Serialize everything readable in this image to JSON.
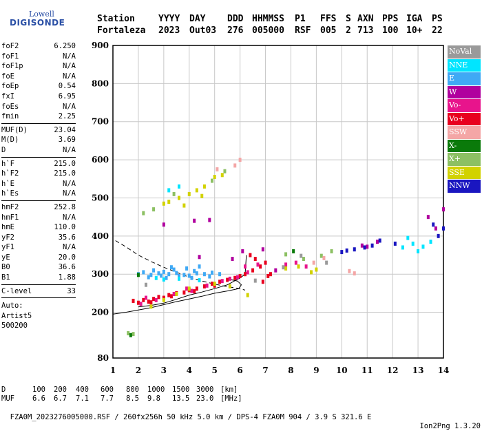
{
  "logo": {
    "top": "Lowell",
    "main": "DIGISONDE"
  },
  "header": {
    "labels": [
      "Station",
      "YYYY",
      "DAY",
      "DDD",
      "HHMMSS",
      "P1",
      "FFS",
      "S",
      "AXN",
      "PPS",
      "IGA",
      "PS"
    ],
    "values": [
      "Fortaleza",
      "2023",
      "Out03",
      "276",
      "005000",
      "RSF",
      "005",
      "2",
      "713",
      "100",
      "10+",
      "22"
    ]
  },
  "params_group1": [
    {
      "name": "foF2",
      "value": "6.250"
    },
    {
      "name": "foF1",
      "value": "N/A"
    },
    {
      "name": "foF1p",
      "value": "N/A"
    },
    {
      "name": "foE",
      "value": "N/A"
    },
    {
      "name": "foEp",
      "value": "0.54"
    },
    {
      "name": "fxI",
      "value": "6.95"
    },
    {
      "name": "foEs",
      "value": "N/A"
    },
    {
      "name": "fmin",
      "value": "2.25"
    }
  ],
  "params_group2": [
    {
      "name": "MUF(D)",
      "value": "23.04"
    },
    {
      "name": "M(D)",
      "value": "3.69"
    },
    {
      "name": "D",
      "value": "N/A"
    }
  ],
  "params_group3": [
    {
      "name": "h`F",
      "value": "215.0"
    },
    {
      "name": "h`F2",
      "value": "215.0"
    },
    {
      "name": "h`E",
      "value": "N/A"
    },
    {
      "name": "h`Es",
      "value": "N/A"
    }
  ],
  "params_group4": [
    {
      "name": "hmF2",
      "value": "252.8"
    },
    {
      "name": "hmF1",
      "value": "N/A"
    },
    {
      "name": "hmE",
      "value": "110.0"
    },
    {
      "name": "yF2",
      "value": "35.6"
    },
    {
      "name": "yF1",
      "value": "N/A"
    },
    {
      "name": "yE",
      "value": "20.0"
    },
    {
      "name": "B0",
      "value": "36.6"
    },
    {
      "name": "B1",
      "value": "1.88"
    }
  ],
  "params_group5": [
    {
      "name": "C-level",
      "value": "33"
    }
  ],
  "auto": {
    "line1": "Auto:",
    "line2": "Artist5",
    "line3": "500200"
  },
  "legend": [
    {
      "label": "NoVal",
      "color": "#9a9a9a"
    },
    {
      "label": "NNE",
      "color": "#00e5ff"
    },
    {
      "label": "E",
      "color": "#3fa9f5"
    },
    {
      "label": "W",
      "color": "#b0009e"
    },
    {
      "label": "Vo-",
      "color": "#e8148c"
    },
    {
      "label": "Vo+",
      "color": "#e8001e"
    },
    {
      "label": "SSW",
      "color": "#f4a6a6"
    },
    {
      "label": "X-",
      "color": "#0a7a0a"
    },
    {
      "label": "X+",
      "color": "#8cc063"
    },
    {
      "label": "SSE",
      "color": "#d2d200"
    },
    {
      "label": "NNW",
      "color": "#1a16c0"
    }
  ],
  "footer": {
    "d_label": "D",
    "d_values": [
      "100",
      "200",
      "400",
      "600",
      "800",
      "1000",
      "1500",
      "3000"
    ],
    "d_unit": "[km]",
    "muf_label": "MUF",
    "muf_values": [
      "6.6",
      "6.7",
      "7.1",
      "7.7",
      "8.5",
      "9.8",
      "13.5",
      "23.0"
    ],
    "muf_unit": "[MHz]",
    "info": "FZA0M_2023276005000.RSF / 260fx256h 50 kHz 5.0 km / DPS-4 FZA0M 904 / 3.9 S 321.6 E",
    "version": "Ion2Png 1.3.20"
  },
  "chart_data": {
    "type": "scatter",
    "xlim": [
      1,
      14
    ],
    "xticks": [
      1,
      2,
      3,
      4,
      5,
      6,
      7,
      8,
      9,
      10,
      11,
      12,
      13,
      14
    ],
    "ylim": [
      80,
      900
    ],
    "yticks": [
      80,
      200,
      300,
      400,
      500,
      600,
      700,
      800,
      900
    ],
    "grid": true,
    "xlabel": "",
    "ylabel": "",
    "series": [
      {
        "name": "E",
        "points": [
          [
            2.0,
            300
          ],
          [
            2.2,
            305
          ],
          [
            2.5,
            298
          ],
          [
            2.8,
            302
          ],
          [
            3.0,
            306
          ],
          [
            3.2,
            300
          ],
          [
            3.5,
            303
          ],
          [
            3.8,
            298
          ],
          [
            4.0,
            296
          ],
          [
            4.3,
            302
          ],
          [
            4.6,
            300
          ],
          [
            4.9,
            304
          ],
          [
            5.2,
            300
          ],
          [
            2.4,
            292
          ],
          [
            3.1,
            290
          ],
          [
            3.6,
            295
          ],
          [
            4.1,
            290
          ],
          [
            4.8,
            294
          ],
          [
            2.6,
            310
          ],
          [
            3.4,
            312
          ],
          [
            4.2,
            308
          ],
          [
            3.9,
            315
          ],
          [
            4.4,
            320
          ],
          [
            3.3,
            318
          ],
          [
            2.9,
            296
          ]
        ]
      },
      {
        "name": "NNE",
        "points": [
          [
            3.0,
            286
          ],
          [
            3.6,
            288
          ],
          [
            4.4,
            284
          ],
          [
            2.7,
            290
          ],
          [
            12.4,
            370
          ],
          [
            12.8,
            380
          ],
          [
            13.2,
            372
          ],
          [
            12.6,
            395
          ],
          [
            13.5,
            385
          ],
          [
            3.2,
            520
          ],
          [
            3.6,
            530
          ],
          [
            13.0,
            360
          ]
        ]
      },
      {
        "name": "Vo+",
        "points": [
          [
            1.8,
            230
          ],
          [
            2.0,
            225
          ],
          [
            2.2,
            232
          ],
          [
            2.4,
            228
          ],
          [
            2.6,
            235
          ],
          [
            2.8,
            240
          ],
          [
            3.0,
            238
          ],
          [
            3.2,
            245
          ],
          [
            3.5,
            250
          ],
          [
            3.8,
            252
          ],
          [
            4.0,
            258
          ],
          [
            4.3,
            262
          ],
          [
            4.6,
            268
          ],
          [
            4.9,
            275
          ],
          [
            5.2,
            280
          ],
          [
            5.5,
            285
          ],
          [
            5.8,
            290
          ],
          [
            6.0,
            295
          ],
          [
            6.2,
            300
          ],
          [
            6.5,
            310
          ],
          [
            6.8,
            320
          ],
          [
            7.0,
            330
          ],
          [
            7.2,
            300
          ],
          [
            6.4,
            350
          ],
          [
            6.6,
            340
          ],
          [
            5.0,
            270
          ],
          [
            4.2,
            255
          ],
          [
            3.3,
            242
          ],
          [
            2.5,
            226
          ],
          [
            6.9,
            280
          ],
          [
            7.1,
            295
          ]
        ]
      },
      {
        "name": "Vo-",
        "points": [
          [
            2.1,
            222
          ],
          [
            2.7,
            232
          ],
          [
            3.4,
            248
          ],
          [
            4.1,
            256
          ],
          [
            4.7,
            270
          ],
          [
            5.3,
            282
          ],
          [
            5.9,
            292
          ],
          [
            6.3,
            305
          ],
          [
            6.7,
            325
          ],
          [
            3.9,
            262
          ],
          [
            5.6,
            288
          ],
          [
            2.3,
            238
          ],
          [
            6.2,
            320
          ],
          [
            7.8,
            325
          ],
          [
            8.2,
            330
          ],
          [
            8.6,
            320
          ]
        ]
      },
      {
        "name": "W",
        "points": [
          [
            3.0,
            430
          ],
          [
            4.2,
            440
          ],
          [
            4.8,
            442
          ],
          [
            6.1,
            360
          ],
          [
            6.9,
            365
          ],
          [
            5.7,
            340
          ],
          [
            4.4,
            345
          ],
          [
            10.8,
            375
          ],
          [
            11.0,
            372
          ],
          [
            11.4,
            385
          ],
          [
            13.4,
            450
          ],
          [
            13.7,
            420
          ],
          [
            14.0,
            470
          ],
          [
            7.4,
            310
          ]
        ]
      },
      {
        "name": "NNW",
        "points": [
          [
            10.2,
            362
          ],
          [
            10.5,
            365
          ],
          [
            10.9,
            370
          ],
          [
            11.2,
            375
          ],
          [
            11.5,
            388
          ],
          [
            12.1,
            380
          ],
          [
            13.6,
            430
          ],
          [
            13.8,
            400
          ],
          [
            14.0,
            420
          ],
          [
            10.0,
            358
          ]
        ]
      },
      {
        "name": "SSE",
        "points": [
          [
            2.5,
            215
          ],
          [
            3.0,
            232
          ],
          [
            3.5,
            248
          ],
          [
            4.0,
            262
          ],
          [
            5.0,
            275
          ],
          [
            5.6,
            268
          ],
          [
            6.3,
            245
          ],
          [
            7.8,
            315
          ],
          [
            8.3,
            320
          ],
          [
            8.8,
            305
          ],
          [
            9.0,
            312
          ],
          [
            3.0,
            485
          ],
          [
            3.2,
            490
          ],
          [
            3.6,
            500
          ],
          [
            4.0,
            510
          ],
          [
            4.3,
            520
          ],
          [
            4.6,
            530
          ],
          [
            5.0,
            555
          ],
          [
            5.3,
            560
          ],
          [
            3.8,
            480
          ],
          [
            4.5,
            505
          ]
        ]
      },
      {
        "name": "X+",
        "points": [
          [
            1.6,
            145
          ],
          [
            1.8,
            143
          ],
          [
            2.2,
            460
          ],
          [
            2.6,
            470
          ],
          [
            4.9,
            545
          ],
          [
            5.4,
            570
          ],
          [
            7.8,
            352
          ],
          [
            8.5,
            340
          ],
          [
            9.2,
            348
          ],
          [
            9.6,
            360
          ],
          [
            3.4,
            510
          ]
        ]
      },
      {
        "name": "X-",
        "points": [
          [
            1.7,
            140
          ],
          [
            2.0,
            298
          ],
          [
            8.1,
            360
          ]
        ]
      },
      {
        "name": "SSW",
        "points": [
          [
            10.3,
            308
          ],
          [
            10.5,
            302
          ],
          [
            5.8,
            585
          ],
          [
            6.0,
            600
          ],
          [
            5.1,
            575
          ],
          [
            8.9,
            330
          ],
          [
            9.3,
            342
          ]
        ]
      },
      {
        "name": "NoVal",
        "points": [
          [
            7.7,
            318
          ],
          [
            8.4,
            348
          ],
          [
            9.4,
            330
          ],
          [
            2.3,
            272
          ],
          [
            6.6,
            283
          ]
        ]
      }
    ],
    "curves": [
      {
        "name": "lower-solid",
        "style": "solid",
        "points": [
          [
            1.0,
            195
          ],
          [
            1.5,
            200
          ],
          [
            2.0,
            206
          ],
          [
            2.5,
            212
          ],
          [
            3.0,
            220
          ],
          [
            3.5,
            228
          ],
          [
            4.0,
            235
          ],
          [
            4.5,
            242
          ],
          [
            5.0,
            250
          ],
          [
            5.5,
            256
          ],
          [
            5.95,
            262
          ],
          [
            6.05,
            272
          ],
          [
            5.9,
            282
          ],
          [
            5.6,
            286
          ]
        ]
      },
      {
        "name": "upper-solid",
        "style": "solid",
        "points": [
          [
            2.0,
            214
          ],
          [
            2.5,
            218
          ],
          [
            3.0,
            224
          ],
          [
            3.5,
            234
          ],
          [
            4.0,
            245
          ],
          [
            4.5,
            253
          ],
          [
            5.0,
            262
          ],
          [
            5.5,
            272
          ],
          [
            6.0,
            290
          ],
          [
            6.2,
            300
          ],
          [
            6.25,
            350
          ]
        ]
      },
      {
        "name": "dashed",
        "style": "dashed",
        "points": [
          [
            1.1,
            388
          ],
          [
            1.5,
            372
          ],
          [
            2.0,
            350
          ],
          [
            2.5,
            333
          ],
          [
            3.0,
            318
          ],
          [
            3.5,
            305
          ],
          [
            4.0,
            292
          ],
          [
            4.5,
            282
          ],
          [
            5.0,
            274
          ],
          [
            5.5,
            267
          ],
          [
            6.0,
            262
          ],
          [
            6.2,
            258
          ]
        ]
      }
    ]
  }
}
